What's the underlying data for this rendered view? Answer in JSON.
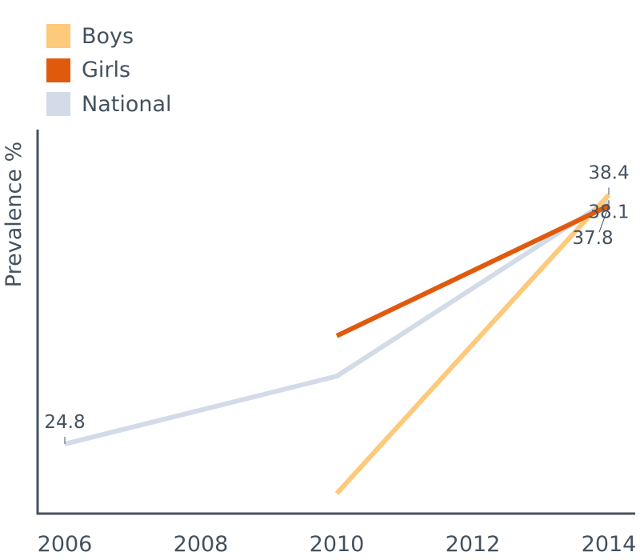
{
  "chart_data": {
    "type": "line",
    "title": "",
    "xlabel": "",
    "ylabel": "Prevalence %",
    "x_ticks": [
      "2006",
      "2008",
      "2010",
      "2012",
      "2014"
    ],
    "xlim": [
      2006,
      2014
    ],
    "ylim": [
      21,
      42
    ],
    "grid": false,
    "legend": "top-left",
    "series": [
      {
        "name": "Boys",
        "color": "#fdc97a",
        "points": [
          [
            2010,
            22.1
          ],
          [
            2014,
            38.4
          ]
        ]
      },
      {
        "name": "Girls",
        "color": "#e05a0e",
        "points": [
          [
            2010,
            30.7
          ],
          [
            2014,
            37.8
          ]
        ]
      },
      {
        "name": "National",
        "color": "#d2dbe7",
        "points": [
          [
            2006,
            24.8
          ],
          [
            2010,
            28.5
          ],
          [
            2014,
            38.1
          ]
        ]
      }
    ],
    "annotations": [
      {
        "text": "24.8",
        "x": 2006,
        "y": 24.8
      },
      {
        "text": "38.4",
        "x": 2014,
        "y": 38.4
      },
      {
        "text": "38.1",
        "x": 2014,
        "y": 38.1
      },
      {
        "text": "37.8",
        "x": 2014,
        "y": 37.8
      }
    ]
  }
}
